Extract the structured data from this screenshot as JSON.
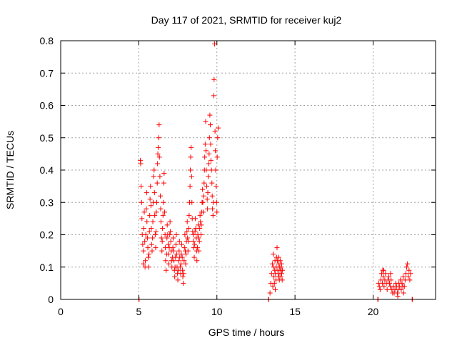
{
  "chart_data": {
    "type": "scatter",
    "title": "Day 117 of 2021, SRMTID for receiver kuj2",
    "xlabel": "GPS time / hours",
    "ylabel": "SRMTID / TECUs",
    "xlim": [
      0,
      24
    ],
    "ylim": [
      0,
      0.8
    ],
    "x_ticks": [
      0,
      5,
      10,
      15,
      20
    ],
    "x_tick_labels": [
      "0",
      "5",
      "10",
      "15",
      "20"
    ],
    "y_ticks": [
      0,
      0.1,
      0.2,
      0.3,
      0.4,
      0.5,
      0.6,
      0.7,
      0.8
    ],
    "y_tick_labels": [
      "0",
      "0.1",
      "0.2",
      "0.3",
      "0.4",
      "0.5",
      "0.6",
      "0.7",
      "0.8"
    ],
    "grid": true,
    "marker": "+",
    "series": [
      {
        "name": "SRMTID",
        "color": "#ff0000",
        "points": [
          [
            5.0,
            0.0
          ],
          [
            5.02,
            0.0
          ],
          [
            5.1,
            0.43
          ],
          [
            5.12,
            0.42
          ],
          [
            5.15,
            0.35
          ],
          [
            5.18,
            0.3
          ],
          [
            5.2,
            0.25
          ],
          [
            5.22,
            0.2
          ],
          [
            5.25,
            0.17
          ],
          [
            5.28,
            0.11
          ],
          [
            5.3,
            0.15
          ],
          [
            5.32,
            0.22
          ],
          [
            5.35,
            0.27
          ],
          [
            5.38,
            0.18
          ],
          [
            5.4,
            0.1
          ],
          [
            5.42,
            0.12
          ],
          [
            5.45,
            0.2
          ],
          [
            5.48,
            0.28
          ],
          [
            5.5,
            0.33
          ],
          [
            5.52,
            0.24
          ],
          [
            5.55,
            0.19
          ],
          [
            5.58,
            0.16
          ],
          [
            5.6,
            0.13
          ],
          [
            5.62,
            0.1
          ],
          [
            5.65,
            0.14
          ],
          [
            5.68,
            0.21
          ],
          [
            5.7,
            0.26
          ],
          [
            5.72,
            0.31
          ],
          [
            5.75,
            0.35
          ],
          [
            5.78,
            0.29
          ],
          [
            5.8,
            0.22
          ],
          [
            5.82,
            0.17
          ],
          [
            5.85,
            0.15
          ],
          [
            5.88,
            0.19
          ],
          [
            5.9,
            0.24
          ],
          [
            5.92,
            0.3
          ],
          [
            5.95,
            0.38
          ],
          [
            5.98,
            0.4
          ],
          [
            6.0,
            0.33
          ],
          [
            6.02,
            0.26
          ],
          [
            6.05,
            0.2
          ],
          [
            6.08,
            0.16
          ],
          [
            6.1,
            0.21
          ],
          [
            6.12,
            0.27
          ],
          [
            6.15,
            0.3
          ],
          [
            6.18,
            0.36
          ],
          [
            6.2,
            0.42
          ],
          [
            6.22,
            0.45
          ],
          [
            6.25,
            0.47
          ],
          [
            6.28,
            0.5
          ],
          [
            6.3,
            0.54
          ],
          [
            6.32,
            0.44
          ],
          [
            6.35,
            0.38
          ],
          [
            6.38,
            0.32
          ],
          [
            6.4,
            0.28
          ],
          [
            6.42,
            0.24
          ],
          [
            6.45,
            0.19
          ],
          [
            6.48,
            0.15
          ],
          [
            6.5,
            0.18
          ],
          [
            6.52,
            0.22
          ],
          [
            6.55,
            0.26
          ],
          [
            6.58,
            0.3
          ],
          [
            6.6,
            0.36
          ],
          [
            6.62,
            0.39
          ],
          [
            6.65,
            0.27
          ],
          [
            6.68,
            0.2
          ],
          [
            6.7,
            0.16
          ],
          [
            6.72,
            0.12
          ],
          [
            6.75,
            0.09
          ],
          [
            6.78,
            0.14
          ],
          [
            6.8,
            0.19
          ],
          [
            6.82,
            0.23
          ],
          [
            6.85,
            0.2
          ],
          [
            6.88,
            0.17
          ],
          [
            6.9,
            0.14
          ],
          [
            6.92,
            0.11
          ],
          [
            6.95,
            0.16
          ],
          [
            6.98,
            0.2
          ],
          [
            7.0,
            0.24
          ],
          [
            7.02,
            0.21
          ],
          [
            7.05,
            0.18
          ],
          [
            7.08,
            0.15
          ],
          [
            7.1,
            0.12
          ],
          [
            7.12,
            0.1
          ],
          [
            7.15,
            0.13
          ],
          [
            7.18,
            0.16
          ],
          [
            7.2,
            0.19
          ],
          [
            7.22,
            0.15
          ],
          [
            7.25,
            0.12
          ],
          [
            7.28,
            0.09
          ],
          [
            7.3,
            0.07
          ],
          [
            7.32,
            0.1
          ],
          [
            7.35,
            0.13
          ],
          [
            7.38,
            0.17
          ],
          [
            7.4,
            0.2
          ],
          [
            7.42,
            0.14
          ],
          [
            7.45,
            0.1
          ],
          [
            7.48,
            0.08
          ],
          [
            7.5,
            0.06
          ],
          [
            7.52,
            0.09
          ],
          [
            7.55,
            0.12
          ],
          [
            7.58,
            0.15
          ],
          [
            7.6,
            0.18
          ],
          [
            7.62,
            0.13
          ],
          [
            7.65,
            0.1
          ],
          [
            7.68,
            0.08
          ],
          [
            7.7,
            0.11
          ],
          [
            7.72,
            0.14
          ],
          [
            7.75,
            0.17
          ],
          [
            7.78,
            0.13
          ],
          [
            7.8,
            0.09
          ],
          [
            7.82,
            0.07
          ],
          [
            7.85,
            0.05
          ],
          [
            7.88,
            0.08
          ],
          [
            7.9,
            0.12
          ],
          [
            7.92,
            0.16
          ],
          [
            7.95,
            0.2
          ],
          [
            7.98,
            0.15
          ],
          [
            8.0,
            0.11
          ],
          [
            8.02,
            0.14
          ],
          [
            8.05,
            0.18
          ],
          [
            8.08,
            0.21
          ],
          [
            8.1,
            0.24
          ],
          [
            8.12,
            0.19
          ],
          [
            8.15,
            0.15
          ],
          [
            8.18,
            0.18
          ],
          [
            8.2,
            0.22
          ],
          [
            8.22,
            0.26
          ],
          [
            8.25,
            0.3
          ],
          [
            8.28,
            0.35
          ],
          [
            8.3,
            0.4
          ],
          [
            8.32,
            0.44
          ],
          [
            8.35,
            0.47
          ],
          [
            8.38,
            0.38
          ],
          [
            8.4,
            0.3
          ],
          [
            8.42,
            0.25
          ],
          [
            8.45,
            0.21
          ],
          [
            8.48,
            0.18
          ],
          [
            8.5,
            0.2
          ],
          [
            8.52,
            0.16
          ],
          [
            8.55,
            0.13
          ],
          [
            8.58,
            0.17
          ],
          [
            8.6,
            0.21
          ],
          [
            8.62,
            0.25
          ],
          [
            8.65,
            0.22
          ],
          [
            8.68,
            0.19
          ],
          [
            8.7,
            0.15
          ],
          [
            8.72,
            0.12
          ],
          [
            8.75,
            0.16
          ],
          [
            8.78,
            0.2
          ],
          [
            8.8,
            0.23
          ],
          [
            8.82,
            0.19
          ],
          [
            8.85,
            0.15
          ],
          [
            8.88,
            0.18
          ],
          [
            8.9,
            0.22
          ],
          [
            8.92,
            0.26
          ],
          [
            8.95,
            0.24
          ],
          [
            8.98,
            0.2
          ],
          [
            9.0,
            0.23
          ],
          [
            9.02,
            0.27
          ],
          [
            9.05,
            0.3
          ],
          [
            9.08,
            0.34
          ],
          [
            9.1,
            0.3
          ],
          [
            9.12,
            0.27
          ],
          [
            9.15,
            0.32
          ],
          [
            9.18,
            0.36
          ],
          [
            9.2,
            0.4
          ],
          [
            9.22,
            0.44
          ],
          [
            9.25,
            0.48
          ],
          [
            9.28,
            0.55
          ],
          [
            9.3,
            0.46
          ],
          [
            9.32,
            0.4
          ],
          [
            9.35,
            0.35
          ],
          [
            9.38,
            0.31
          ],
          [
            9.4,
            0.28
          ],
          [
            9.42,
            0.33
          ],
          [
            9.45,
            0.38
          ],
          [
            9.48,
            0.42
          ],
          [
            9.5,
            0.45
          ],
          [
            9.52,
            0.5
          ],
          [
            9.55,
            0.57
          ],
          [
            9.58,
            0.54
          ],
          [
            9.6,
            0.48
          ],
          [
            9.62,
            0.43
          ],
          [
            9.65,
            0.4
          ],
          [
            9.68,
            0.36
          ],
          [
            9.7,
            0.32
          ],
          [
            9.72,
            0.28
          ],
          [
            9.75,
            0.26
          ],
          [
            9.78,
            0.3
          ],
          [
            9.8,
            0.63
          ],
          [
            9.82,
            0.68
          ],
          [
            9.85,
            0.79
          ],
          [
            9.88,
            0.52
          ],
          [
            9.9,
            0.46
          ],
          [
            9.92,
            0.4
          ],
          [
            9.95,
            0.35
          ],
          [
            9.98,
            0.3
          ],
          [
            10.0,
            0.27
          ],
          [
            10.02,
            0.44
          ],
          [
            10.05,
            0.5
          ],
          [
            10.08,
            0.53
          ],
          [
            13.3,
            0.0
          ],
          [
            13.32,
            0.0
          ],
          [
            13.4,
            0.02
          ],
          [
            13.45,
            0.05
          ],
          [
            13.5,
            0.08
          ],
          [
            13.55,
            0.11
          ],
          [
            13.6,
            0.14
          ],
          [
            13.62,
            0.1
          ],
          [
            13.65,
            0.07
          ],
          [
            13.68,
            0.05
          ],
          [
            13.7,
            0.09
          ],
          [
            13.72,
            0.12
          ],
          [
            13.75,
            0.08
          ],
          [
            13.78,
            0.06
          ],
          [
            13.8,
            0.1
          ],
          [
            13.82,
            0.13
          ],
          [
            13.85,
            0.16
          ],
          [
            13.88,
            0.12
          ],
          [
            13.9,
            0.09
          ],
          [
            13.92,
            0.07
          ],
          [
            13.95,
            0.11
          ],
          [
            13.98,
            0.08
          ],
          [
            14.0,
            0.06
          ],
          [
            14.02,
            0.1
          ],
          [
            14.05,
            0.12
          ],
          [
            14.08,
            0.09
          ],
          [
            14.1,
            0.07
          ],
          [
            14.12,
            0.1
          ],
          [
            14.15,
            0.08
          ],
          [
            14.18,
            0.06
          ],
          [
            14.2,
            0.09
          ],
          [
            13.58,
            0.04
          ],
          [
            13.74,
            0.03
          ],
          [
            13.96,
            0.13
          ],
          [
            14.14,
            0.11
          ],
          [
            20.3,
            0.0
          ],
          [
            20.32,
            0.0
          ],
          [
            20.35,
            0.05
          ],
          [
            20.4,
            0.04
          ],
          [
            20.45,
            0.03
          ],
          [
            20.5,
            0.06
          ],
          [
            20.55,
            0.08
          ],
          [
            20.6,
            0.05
          ],
          [
            20.62,
            0.09
          ],
          [
            20.65,
            0.07
          ],
          [
            20.7,
            0.04
          ],
          [
            20.75,
            0.06
          ],
          [
            20.8,
            0.08
          ],
          [
            20.85,
            0.05
          ],
          [
            20.9,
            0.03
          ],
          [
            20.95,
            0.06
          ],
          [
            21.0,
            0.07
          ],
          [
            21.05,
            0.05
          ],
          [
            21.1,
            0.04
          ],
          [
            21.15,
            0.06
          ],
          [
            21.2,
            0.03
          ],
          [
            21.25,
            0.02
          ],
          [
            21.3,
            0.04
          ],
          [
            21.35,
            0.02
          ],
          [
            21.4,
            0.03
          ],
          [
            21.45,
            0.05
          ],
          [
            21.5,
            0.04
          ],
          [
            21.55,
            0.02
          ],
          [
            21.6,
            0.03
          ],
          [
            21.65,
            0.05
          ],
          [
            21.7,
            0.04
          ],
          [
            21.75,
            0.06
          ],
          [
            21.8,
            0.03
          ],
          [
            21.85,
            0.05
          ],
          [
            21.9,
            0.04
          ],
          [
            21.95,
            0.02
          ],
          [
            22.0,
            0.04
          ],
          [
            22.05,
            0.06
          ],
          [
            22.1,
            0.08
          ],
          [
            22.15,
            0.1
          ],
          [
            22.2,
            0.11
          ],
          [
            22.25,
            0.07
          ],
          [
            22.3,
            0.09
          ],
          [
            22.35,
            0.06
          ],
          [
            22.4,
            0.08
          ],
          [
            22.5,
            0.0
          ],
          [
            22.52,
            0.0
          ],
          [
            20.68,
            0.09
          ],
          [
            21.12,
            0.08
          ],
          [
            21.58,
            0.01
          ],
          [
            21.92,
            0.07
          ]
        ]
      }
    ]
  }
}
